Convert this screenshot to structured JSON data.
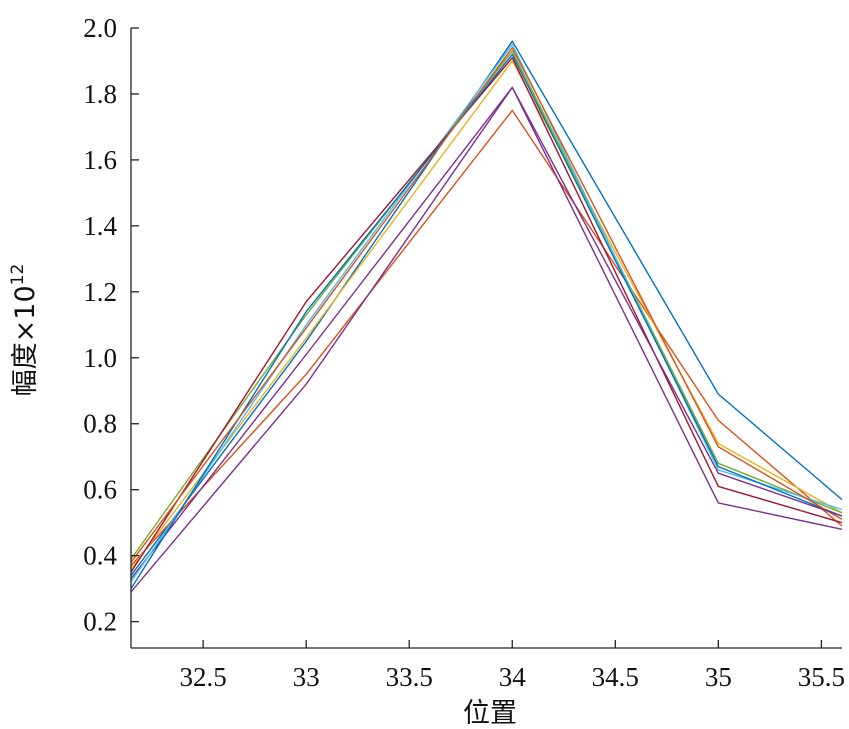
{
  "chart_data": {
    "type": "line",
    "title": "",
    "xlabel": "位置",
    "ylabel_main": "幅度×10",
    "ylabel_exp": "12",
    "xlim": [
      32.15,
      35.6
    ],
    "ylim": [
      0.12,
      2.0
    ],
    "xticks": [
      32.5,
      33,
      33.5,
      34,
      34.5,
      35,
      35.5
    ],
    "xtick_labels": [
      "32.5",
      "33",
      "33.5",
      "34",
      "34.5",
      "35",
      "35.5"
    ],
    "yticks": [
      0.2,
      0.4,
      0.6,
      0.8,
      1.0,
      1.2,
      1.4,
      1.6,
      1.8,
      2.0
    ],
    "ytick_labels": [
      "0.2",
      "0.4",
      "0.6",
      "0.8",
      "1.0",
      "1.2",
      "1.4",
      "1.6",
      "1.8",
      "2.0"
    ],
    "x": [
      32.15,
      33,
      34,
      35,
      35.6
    ],
    "grid": false,
    "series": [
      {
        "color": "#0072BD",
        "values": [
          0.34,
          1.05,
          1.96,
          0.89,
          0.57
        ]
      },
      {
        "color": "#D95319",
        "values": [
          0.37,
          0.95,
          1.75,
          0.81,
          0.49
        ]
      },
      {
        "color": "#EDB120",
        "values": [
          0.36,
          1.06,
          1.9,
          0.74,
          0.53
        ]
      },
      {
        "color": "#7E2F8E",
        "values": [
          0.33,
          1.01,
          1.82,
          0.56,
          0.48
        ]
      },
      {
        "color": "#77AC30",
        "values": [
          0.39,
          1.13,
          1.93,
          0.68,
          0.53
        ]
      },
      {
        "color": "#4DBEEE",
        "values": [
          0.32,
          1.1,
          1.95,
          0.66,
          0.54
        ]
      },
      {
        "color": "#A2142F",
        "values": [
          0.35,
          1.17,
          1.91,
          0.61,
          0.5
        ]
      },
      {
        "color": "#0072BD",
        "values": [
          0.3,
          1.14,
          1.92,
          0.67,
          0.52
        ]
      },
      {
        "color": "#D95319",
        "values": [
          0.38,
          1.09,
          1.94,
          0.73,
          0.51
        ]
      },
      {
        "color": "#7E2F8E",
        "values": [
          0.29,
          0.92,
          1.82,
          0.65,
          0.52
        ]
      }
    ]
  }
}
